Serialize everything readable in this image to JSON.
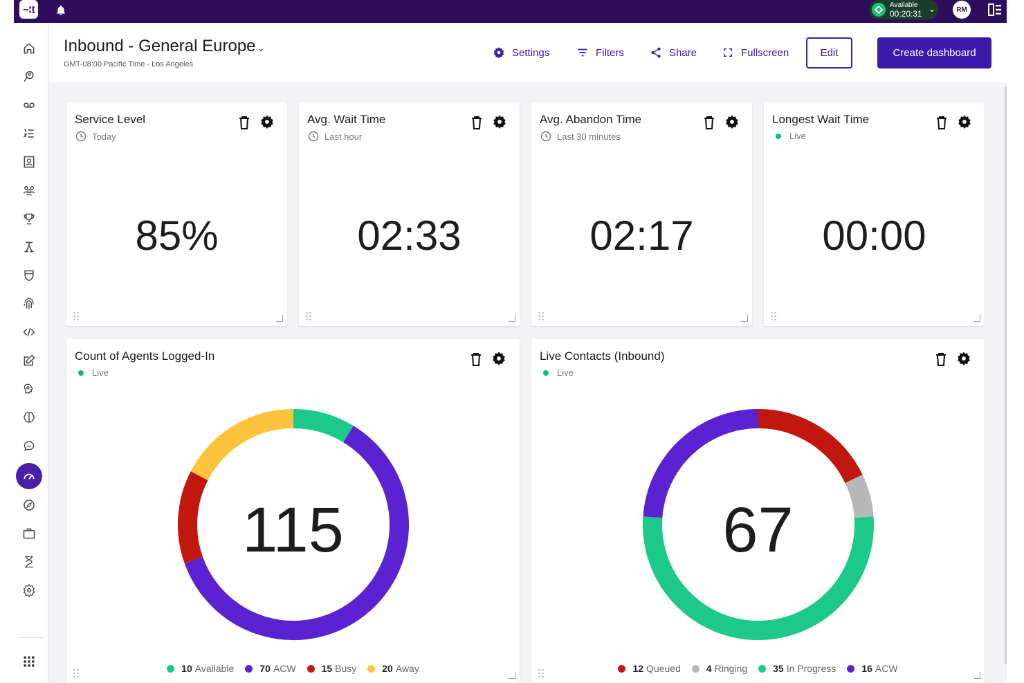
{
  "topbar": {
    "logo_text": "∹t",
    "status_label": "Available",
    "status_timer": "00:20:31",
    "avatar_initials": "RM"
  },
  "header": {
    "title": "Inbound - General Europe",
    "timezone": "GMT-08:00 Pacific Time - Los Angeles",
    "settings_label": "Settings",
    "filters_label": "Filters",
    "share_label": "Share",
    "fullscreen_label": "Fullscreen",
    "edit_label": "Edit",
    "create_label": "Create dashboard"
  },
  "sidebar": {
    "icons": [
      "home-icon",
      "chat-bubble-person-icon",
      "voicemail-icon",
      "list-numbered-icon",
      "contact-card-icon",
      "team-icon",
      "trophy-icon",
      "workflow-icon",
      "shield-icon",
      "fingerprint-icon",
      "code-icon",
      "edit-square-icon",
      "brain-gear-icon",
      "brain-icon",
      "feedback-icon",
      "dashboard-gauge-icon",
      "compass-icon",
      "briefcase-icon",
      "hourglass-person-icon",
      "settings-gear-icon"
    ],
    "active": "dashboard-gauge-icon",
    "apps_icon": "apps-grid-icon"
  },
  "metrics": [
    {
      "title": "Service Level",
      "subtitle": "Today",
      "subtitle_kind": "clock",
      "value": "85%"
    },
    {
      "title": "Avg. Wait Time",
      "subtitle": "Last hour",
      "subtitle_kind": "clock",
      "value": "02:33"
    },
    {
      "title": "Avg. Abandon Time",
      "subtitle": "Last 30 minutes",
      "subtitle_kind": "clock",
      "value": "02:17"
    },
    {
      "title": "Longest Wait Time",
      "subtitle": "Live",
      "subtitle_kind": "live",
      "value": "00:00"
    }
  ],
  "agents": {
    "title": "Count of Agents Logged-In",
    "subtitle": "Live",
    "total": "115",
    "legend": [
      {
        "value": "10",
        "label": "Available"
      },
      {
        "value": "70",
        "label": "ACW"
      },
      {
        "value": "15",
        "label": "Busy"
      },
      {
        "value": "20",
        "label": "Away"
      }
    ]
  },
  "contacts": {
    "title": "Live Contacts (Inbound)",
    "subtitle": "Live",
    "total": "67",
    "legend": [
      {
        "value": "12",
        "label": "Queued"
      },
      {
        "value": "4",
        "label": "Ringing"
      },
      {
        "value": "35",
        "label": "In Progress"
      },
      {
        "value": "16",
        "label": "ACW"
      }
    ]
  },
  "colors": {
    "topbar": "#2e0e5c",
    "accent": "#3a1aa8",
    "green": "#1cc98a",
    "purple": "#5a22d0",
    "red": "#c0170f",
    "yellow": "#fcc43d",
    "gray": "#b8b8b8",
    "live": "#14b981"
  },
  "chart_data": [
    {
      "type": "pie",
      "title": "Count of Agents Logged-In",
      "categories": [
        "Available",
        "ACW",
        "Busy",
        "Away"
      ],
      "values": [
        10,
        70,
        15,
        20
      ],
      "colors": [
        "#1cc98a",
        "#5a22d0",
        "#c0170f",
        "#fcc43d"
      ],
      "center_label": "115"
    },
    {
      "type": "pie",
      "title": "Live Contacts (Inbound)",
      "categories": [
        "Queued",
        "Ringing",
        "In Progress",
        "ACW"
      ],
      "values": [
        12,
        4,
        35,
        16
      ],
      "colors": [
        "#c0170f",
        "#b8b8b8",
        "#1cc98a",
        "#5a22d0"
      ],
      "center_label": "67"
    }
  ]
}
